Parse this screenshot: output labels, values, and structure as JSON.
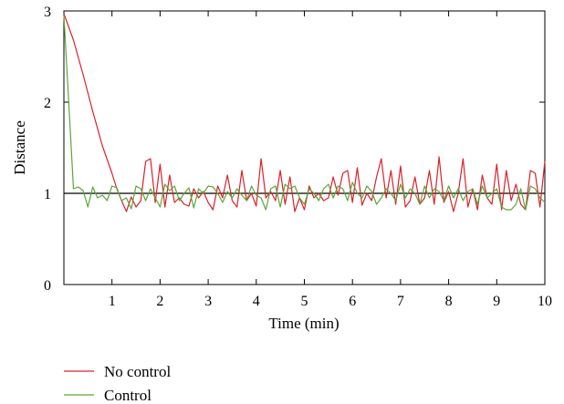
{
  "chart_data": {
    "type": "line",
    "xlabel": "Time (min)",
    "ylabel": "Distance",
    "xlim": [
      0,
      10
    ],
    "ylim": [
      0,
      3
    ],
    "xticks": [
      1,
      2,
      3,
      4,
      5,
      6,
      7,
      8,
      9,
      10
    ],
    "yticks": [
      0,
      1,
      2,
      3
    ],
    "reference_line_y": 1,
    "grid": false,
    "legend_position": "bottom-left",
    "series": [
      {
        "name": "No control",
        "color": "#d8232a",
        "x": [
          0,
          0.2,
          0.4,
          0.6,
          0.8,
          1.0,
          1.1,
          1.2,
          1.3,
          1.4,
          1.5,
          1.6,
          1.7,
          1.8,
          1.9,
          2.0,
          2.1,
          2.2,
          2.3,
          2.4,
          2.5,
          2.6,
          2.7,
          2.8,
          2.9,
          3.0,
          3.1,
          3.2,
          3.3,
          3.4,
          3.5,
          3.6,
          3.7,
          3.8,
          3.9,
          4.0,
          4.1,
          4.2,
          4.3,
          4.4,
          4.5,
          4.6,
          4.7,
          4.8,
          4.9,
          5.0,
          5.1,
          5.2,
          5.3,
          5.4,
          5.5,
          5.6,
          5.7,
          5.8,
          5.9,
          6.0,
          6.1,
          6.2,
          6.3,
          6.4,
          6.5,
          6.6,
          6.7,
          6.8,
          6.9,
          7.0,
          7.1,
          7.2,
          7.3,
          7.4,
          7.5,
          7.6,
          7.7,
          7.8,
          7.9,
          8.0,
          8.1,
          8.2,
          8.3,
          8.4,
          8.5,
          8.6,
          8.7,
          8.8,
          8.9,
          9.0,
          9.1,
          9.2,
          9.3,
          9.4,
          9.5,
          9.6,
          9.7,
          9.8,
          9.9,
          10.0
        ],
        "y": [
          2.97,
          2.68,
          2.3,
          1.9,
          1.52,
          1.22,
          1.05,
          0.92,
          0.8,
          0.96,
          0.85,
          0.92,
          1.35,
          1.38,
          0.9,
          1.32,
          0.85,
          1.2,
          0.9,
          0.95,
          0.88,
          0.86,
          1.05,
          0.95,
          1.02,
          0.9,
          0.82,
          1.08,
          0.95,
          1.2,
          0.92,
          0.85,
          1.25,
          0.92,
          1.0,
          0.86,
          1.38,
          0.95,
          1.02,
          0.92,
          1.25,
          0.88,
          1.18,
          0.8,
          0.95,
          0.82,
          1.08,
          0.95,
          1.0,
          0.92,
          0.95,
          1.18,
          0.98,
          1.22,
          1.25,
          0.9,
          1.28,
          0.87,
          1.0,
          0.92,
          1.18,
          1.38,
          0.95,
          1.25,
          0.88,
          1.3,
          0.85,
          0.92,
          1.18,
          0.88,
          0.95,
          1.25,
          0.88,
          1.4,
          0.9,
          1.02,
          0.8,
          1.0,
          1.38,
          0.85,
          1.05,
          0.82,
          1.2,
          0.95,
          0.88,
          1.32,
          0.82,
          1.25,
          0.92,
          1.1,
          0.88,
          0.82,
          1.25,
          1.22,
          0.85,
          1.35
        ]
      },
      {
        "name": "Control",
        "color": "#5aa63a",
        "x": [
          0,
          0.1,
          0.2,
          0.3,
          0.4,
          0.5,
          0.6,
          0.7,
          0.8,
          0.9,
          1.0,
          1.1,
          1.2,
          1.3,
          1.4,
          1.5,
          1.6,
          1.7,
          1.8,
          1.9,
          2.0,
          2.1,
          2.2,
          2.3,
          2.4,
          2.5,
          2.6,
          2.7,
          2.8,
          2.9,
          3.0,
          3.1,
          3.2,
          3.3,
          3.4,
          3.5,
          3.6,
          3.7,
          3.8,
          3.9,
          4.0,
          4.1,
          4.2,
          4.3,
          4.4,
          4.5,
          4.6,
          4.7,
          4.8,
          4.9,
          5.0,
          5.1,
          5.2,
          5.3,
          5.4,
          5.5,
          5.6,
          5.7,
          5.8,
          5.9,
          6.0,
          6.1,
          6.2,
          6.3,
          6.4,
          6.5,
          6.6,
          6.7,
          6.8,
          6.9,
          7.0,
          7.1,
          7.2,
          7.3,
          7.4,
          7.5,
          7.6,
          7.7,
          7.8,
          7.9,
          8.0,
          8.1,
          8.2,
          8.3,
          8.4,
          8.5,
          8.6,
          8.7,
          8.8,
          8.9,
          9.0,
          9.1,
          9.2,
          9.3,
          9.4,
          9.5,
          9.6,
          9.7,
          9.8,
          9.9,
          10.0
        ],
        "y": [
          2.95,
          2.0,
          1.05,
          1.07,
          1.03,
          0.85,
          1.07,
          0.95,
          0.98,
          0.92,
          1.08,
          1.06,
          0.92,
          0.95,
          0.83,
          1.08,
          1.05,
          0.92,
          1.05,
          0.95,
          0.85,
          1.1,
          1.03,
          1.08,
          0.92,
          1.0,
          1.06,
          0.84,
          1.05,
          1.0,
          1.08,
          1.07,
          1.0,
          0.9,
          1.02,
          0.95,
          1.05,
          0.98,
          0.92,
          1.08,
          0.98,
          0.95,
          0.82,
          1.05,
          1.08,
          0.85,
          1.1,
          1.05,
          1.08,
          0.95,
          0.88,
          1.05,
          1.0,
          0.92,
          1.05,
          1.1,
          0.95,
          1.08,
          1.05,
          0.92,
          1.12,
          1.0,
          0.95,
          1.08,
          1.02,
          0.88,
          0.95,
          1.05,
          1.0,
          0.92,
          1.1,
          0.95,
          1.05,
          1.0,
          0.88,
          1.08,
          0.95,
          1.05,
          1.02,
          0.92,
          1.08,
          0.95,
          1.05,
          0.92,
          1.02,
          1.05,
          0.88,
          1.08,
          0.95,
          1.0,
          1.05,
          0.85,
          0.82,
          0.82,
          0.88,
          1.05,
          0.82,
          1.08,
          1.05,
          0.95,
          0.9
        ]
      }
    ]
  }
}
